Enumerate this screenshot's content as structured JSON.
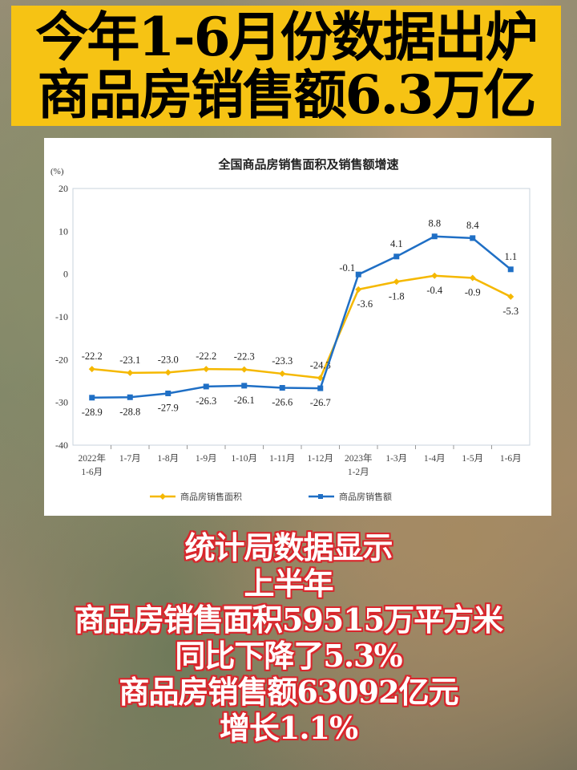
{
  "banner": {
    "line1": "今年1-6月份数据出炉",
    "line2": "商品房销售额6.3万亿"
  },
  "chart_data": {
    "type": "line",
    "title": "全国商品房销售面积及销售额增速",
    "ylabel": "(%)",
    "ylim": [
      -40,
      20
    ],
    "yticks": [
      20,
      10,
      0,
      -10,
      -20,
      -30,
      -40
    ],
    "grid": false,
    "legend_position": "bottom",
    "categories": [
      [
        "2022年",
        "1-6月"
      ],
      [
        "1-7月"
      ],
      [
        "1-8月"
      ],
      [
        "1-9月"
      ],
      [
        "1-10月"
      ],
      [
        "1-11月"
      ],
      [
        "1-12月"
      ],
      [
        "2023年",
        "1-2月"
      ],
      [
        "1-3月"
      ],
      [
        "1-4月"
      ],
      [
        "1-5月"
      ],
      [
        "1-6月"
      ]
    ],
    "series": [
      {
        "name": "商品房销售面积",
        "color": "#f5b800",
        "marker": "diamond",
        "values": [
          -22.2,
          -23.1,
          -23.0,
          -22.2,
          -22.3,
          -23.3,
          -24.3,
          -3.6,
          -1.8,
          -0.4,
          -0.9,
          -5.3
        ]
      },
      {
        "name": "商品房销售额",
        "color": "#1f6fc5",
        "marker": "square",
        "values": [
          -28.9,
          -28.8,
          -27.9,
          -26.3,
          -26.1,
          -26.6,
          -26.7,
          -0.1,
          4.1,
          8.8,
          8.4,
          1.1
        ]
      }
    ]
  },
  "bottom_text": [
    "统计局数据显示",
    "上半年",
    "商品房销售面积59515万平方米",
    "同比下降了5.3%",
    "商品房销售额63092亿元",
    "增长1.1%"
  ]
}
